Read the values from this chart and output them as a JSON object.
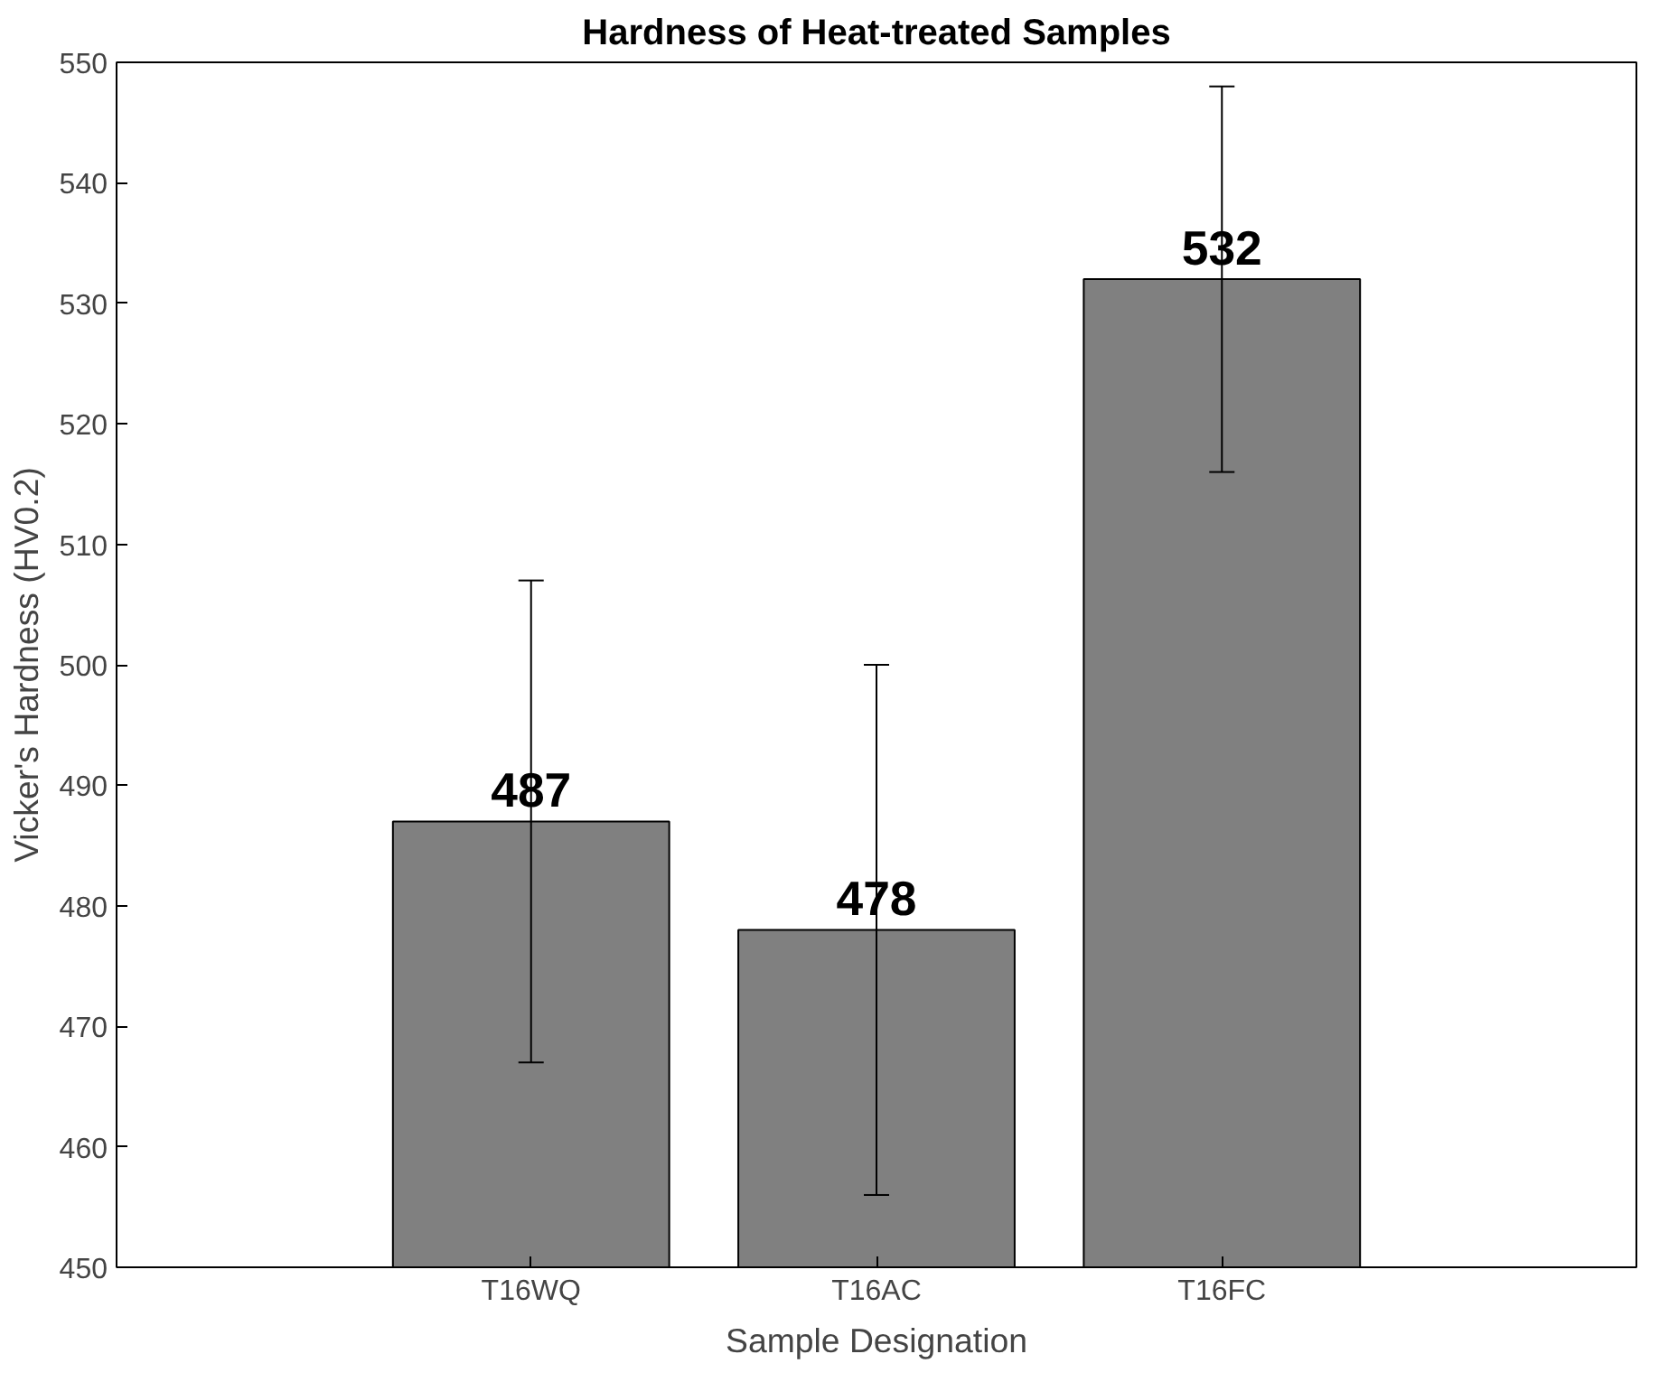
{
  "chart_data": {
    "type": "bar",
    "title": "Hardness of Heat-treated Samples",
    "xlabel": "Sample Designation",
    "ylabel": "Vicker's Hardness (HV0.2)",
    "categories": [
      "T16WQ",
      "T16AC",
      "T16FC"
    ],
    "values": [
      487,
      478,
      532
    ],
    "errors": [
      20,
      22,
      16
    ],
    "color": "#808080",
    "data_labels": true,
    "ylim": [
      450,
      550
    ],
    "yticks": [
      450,
      460,
      470,
      480,
      490,
      500,
      510,
      520,
      530,
      540,
      550
    ],
    "grid": false
  }
}
